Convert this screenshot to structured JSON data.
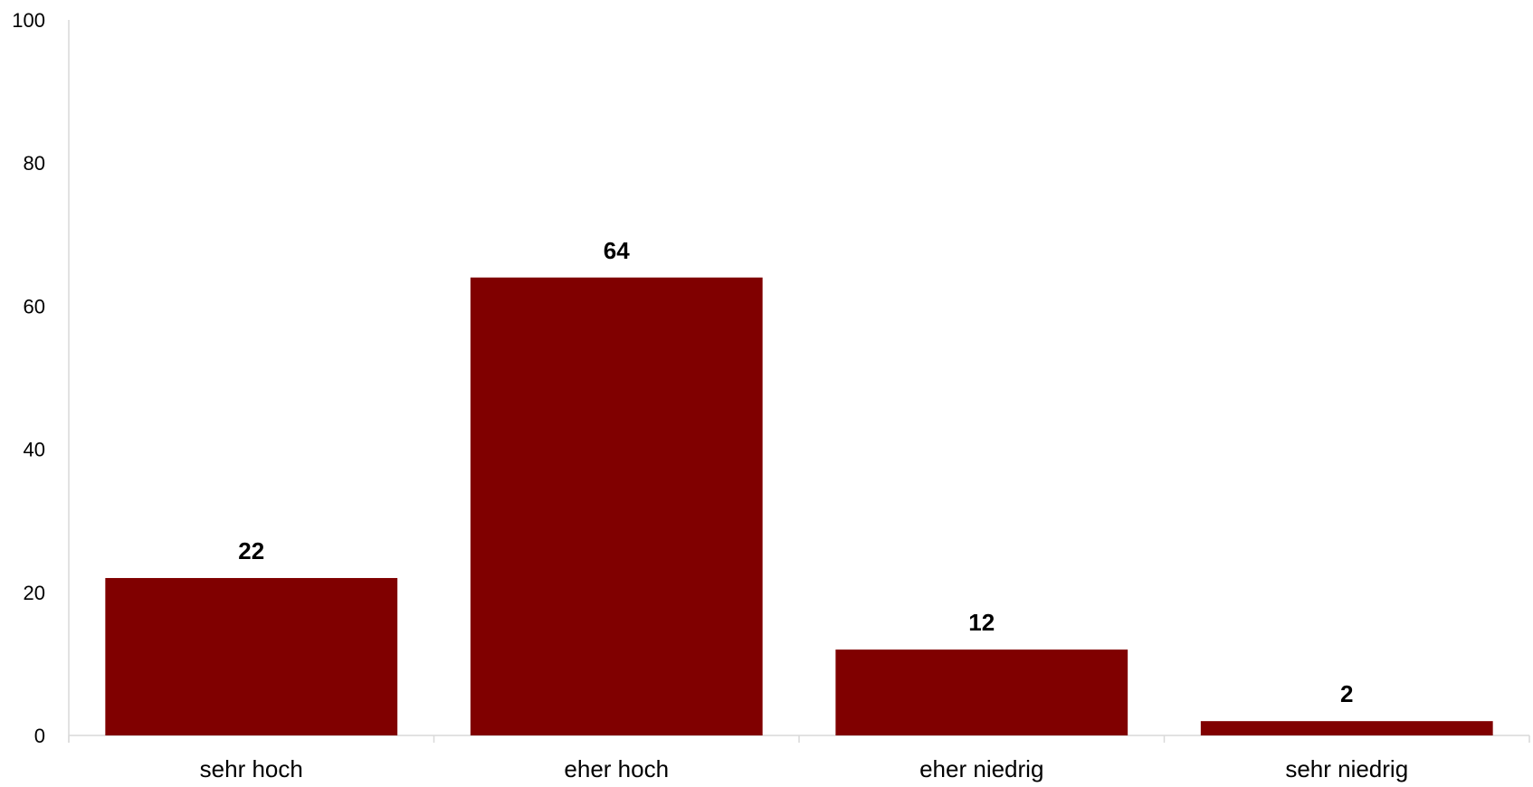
{
  "chart_data": {
    "type": "bar",
    "categories": [
      "sehr hoch",
      "eher hoch",
      "eher niedrig",
      "sehr niedrig"
    ],
    "values": [
      22,
      64,
      12,
      2
    ],
    "data_labels": [
      "22",
      "64",
      "12",
      "2"
    ],
    "title": "",
    "xlabel": "",
    "ylabel": "",
    "ylim": [
      0,
      100
    ],
    "yticks": [
      0,
      20,
      40,
      60,
      80,
      100
    ],
    "ytick_labels": [
      "0",
      "20",
      "40",
      "60",
      "80",
      "100"
    ],
    "grid": false,
    "legend": "none",
    "colors": {
      "bar": "#800000",
      "axis": "#d9d9d9",
      "text": "#000000"
    }
  }
}
